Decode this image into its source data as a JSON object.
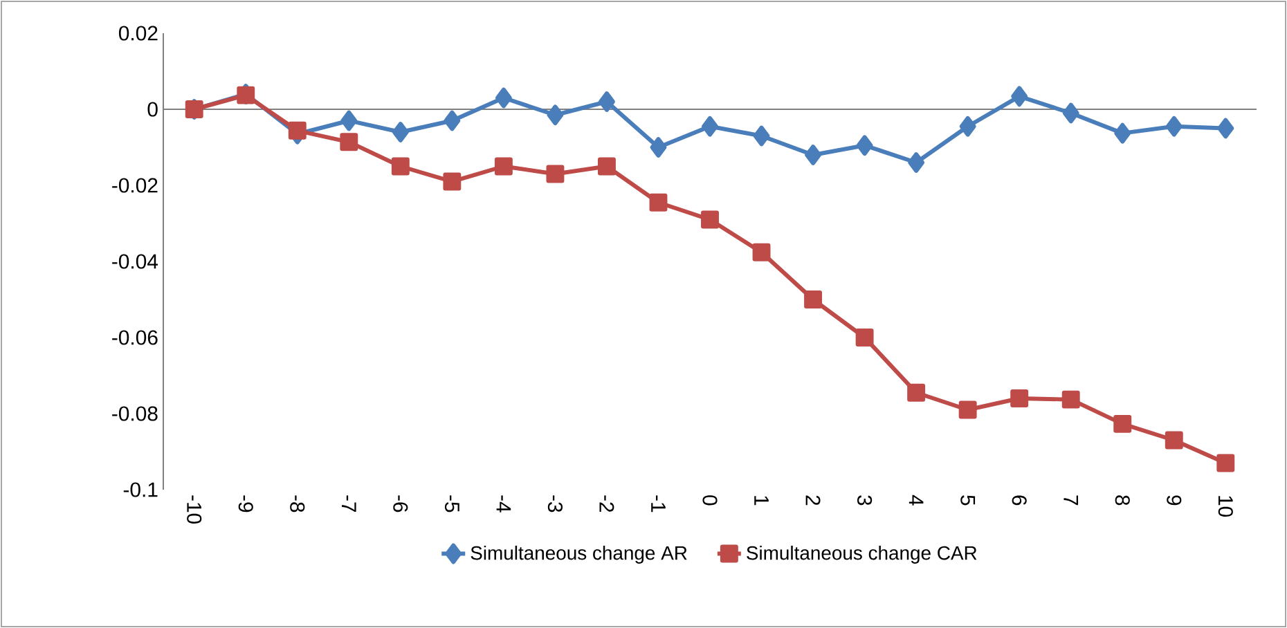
{
  "chart_data": {
    "type": "line",
    "categories": [
      "-10",
      "-9",
      "-8",
      "-7",
      "-6",
      "-5",
      "-4",
      "-3",
      "-2",
      "-1",
      "0",
      "1",
      "2",
      "3",
      "4",
      "5",
      "6",
      "7",
      "8",
      "9",
      "10"
    ],
    "series": [
      {
        "name": "Simultaneous change AR",
        "color": "#4a7ebb",
        "marker": "diamond",
        "values": [
          0,
          0.004,
          -0.0065,
          -0.003,
          -0.006,
          -0.003,
          0.003,
          -0.0015,
          0.002,
          -0.01,
          -0.0045,
          -0.007,
          -0.012,
          -0.0095,
          -0.014,
          -0.0045,
          0.0034,
          -0.001,
          -0.0063,
          -0.0045,
          -0.005
        ]
      },
      {
        "name": "Simultaneous change CAR",
        "color": "#be4b48",
        "marker": "square",
        "values": [
          0,
          0.0037,
          -0.0056,
          -0.0086,
          -0.015,
          -0.019,
          -0.015,
          -0.017,
          -0.015,
          -0.0245,
          -0.029,
          -0.0376,
          -0.05,
          -0.06,
          -0.0745,
          -0.079,
          -0.076,
          -0.0763,
          -0.0827,
          -0.087,
          -0.093
        ]
      }
    ],
    "ylim": [
      -0.1,
      0.02
    ],
    "yticks": [
      0.02,
      0,
      {
        "value": -0.02,
        "label": "-0.02"
      },
      {
        "value": -0.04,
        "label": "-0.04"
      },
      {
        "value": -0.06,
        "label": "-0.06"
      },
      {
        "value": -0.08,
        "label": "-0.08"
      },
      -0.1
    ],
    "ref_lines": [
      {
        "axis": "y",
        "value": 0,
        "color": "#808080"
      }
    ],
    "legend": "bottom",
    "grid": false,
    "line_style": "solid"
  }
}
